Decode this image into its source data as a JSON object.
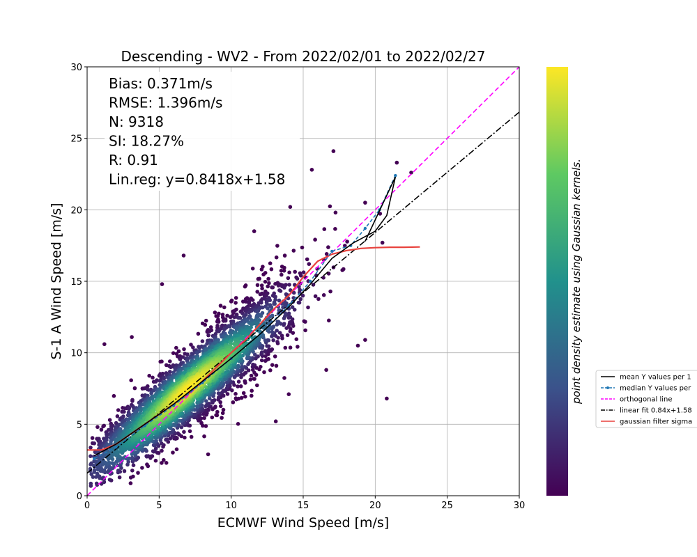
{
  "chart_data": {
    "type": "scatter",
    "title": "Descending - WV2 - From 2022/02/01 to 2022/02/27",
    "xlabel": "ECMWF Wind Speed [m/s]",
    "ylabel": "S-1 A Wind Speed [m/s]",
    "xlim": [
      0,
      30
    ],
    "ylim": [
      0,
      30
    ],
    "x_ticks": [
      "0",
      "5",
      "10",
      "15",
      "20",
      "25",
      "30"
    ],
    "y_ticks": [
      "0",
      "5",
      "10",
      "15",
      "20",
      "25",
      "30"
    ],
    "grid": true,
    "stats": [
      "Bias: 0.371m/s",
      "RMSE: 1.396m/s",
      "N: 9318",
      "SI: 18.27%",
      "R: 0.91",
      "Lin.reg: y=0.8418x+1.58"
    ],
    "colorbar_label": "point density estimate using Gaussian kernels.",
    "colormap": [
      "#440154",
      "#3b528b",
      "#21918c",
      "#5ec962",
      "#fde725"
    ],
    "scatter_density": {
      "n_points": 9318,
      "center_line": {
        "slope": 0.8418,
        "intercept": 1.58
      },
      "densest_point": [
        7,
        7.5
      ],
      "x_range": [
        0.2,
        22
      ],
      "outliers": [
        [
          17.1,
          24.1
        ],
        [
          21.5,
          23.3
        ],
        [
          22.5,
          22.6
        ],
        [
          19.3,
          20.5
        ],
        [
          20.8,
          6.8
        ],
        [
          19.3,
          10.9
        ],
        [
          18.8,
          10.5
        ],
        [
          6.7,
          16.8
        ],
        [
          16.6,
          8.8
        ],
        [
          13.1,
          5.2
        ],
        [
          1.2,
          10.6
        ],
        [
          5.2,
          14.8
        ],
        [
          5.5,
          2.3
        ],
        [
          14,
          7.1
        ],
        [
          8.4,
          2.9
        ],
        [
          15.6,
          22.8
        ],
        [
          14.1,
          20.2
        ],
        [
          11.6,
          18.5
        ],
        [
          3.1,
          11.1
        ],
        [
          20.5,
          17.7
        ]
      ]
    },
    "series": [
      {
        "name": "mean Y values per 1",
        "style": "solid",
        "color": "#000000",
        "x": [
          0.5,
          2,
          4,
          6,
          8,
          10,
          12,
          14,
          15.5,
          17,
          18.5,
          20,
          20.8,
          21.4,
          19.3
        ],
        "y": [
          2.8,
          3.6,
          5.0,
          6.4,
          8.0,
          9.6,
          11.3,
          13.2,
          14.8,
          16.6,
          17.7,
          18.5,
          19.6,
          22.3,
          17.8
        ]
      },
      {
        "name": "median Y values per",
        "style": "dashed-dots",
        "color": "#1f77b4",
        "x": [
          0.5,
          2,
          4,
          6,
          8,
          10,
          12,
          14,
          15.5,
          17,
          18.3,
          19.3,
          20.3,
          21.4
        ],
        "y": [
          2.6,
          3.4,
          4.9,
          6.3,
          7.9,
          9.6,
          11.3,
          13.3,
          15.0,
          17.1,
          17.5,
          18.7,
          20.0,
          22.4
        ]
      },
      {
        "name": "orthogonal line",
        "style": "dashed",
        "color": "#ff00ff",
        "x": [
          0,
          30
        ],
        "y": [
          0,
          30
        ]
      },
      {
        "name": "linear fit 0.84x+1.58",
        "style": "dashdot",
        "color": "#000000",
        "x": [
          0,
          30
        ],
        "y": [
          1.58,
          26.834
        ]
      },
      {
        "name": "gaussian filter sigma",
        "style": "solid",
        "color": "#e8413c",
        "x": [
          0,
          1,
          2,
          3,
          4,
          5,
          6,
          7,
          8,
          9,
          10,
          11,
          12,
          13,
          14,
          15,
          16,
          17,
          18,
          19,
          20,
          21,
          22,
          23.1
        ],
        "y": [
          3.2,
          3.2,
          3.6,
          4.3,
          5.0,
          5.7,
          6.4,
          7.1,
          8.0,
          9.0,
          10.0,
          10.9,
          12.0,
          13.1,
          14.0,
          15.3,
          16.4,
          16.9,
          17.15,
          17.3,
          17.35,
          17.38,
          17.38,
          17.4
        ]
      }
    ],
    "legend": {
      "placement": "right",
      "entries": [
        "mean Y values per 1",
        "median Y values per",
        "orthogonal line",
        "linear fit 0.84x+1.58",
        "gaussian filter sigma"
      ]
    }
  }
}
